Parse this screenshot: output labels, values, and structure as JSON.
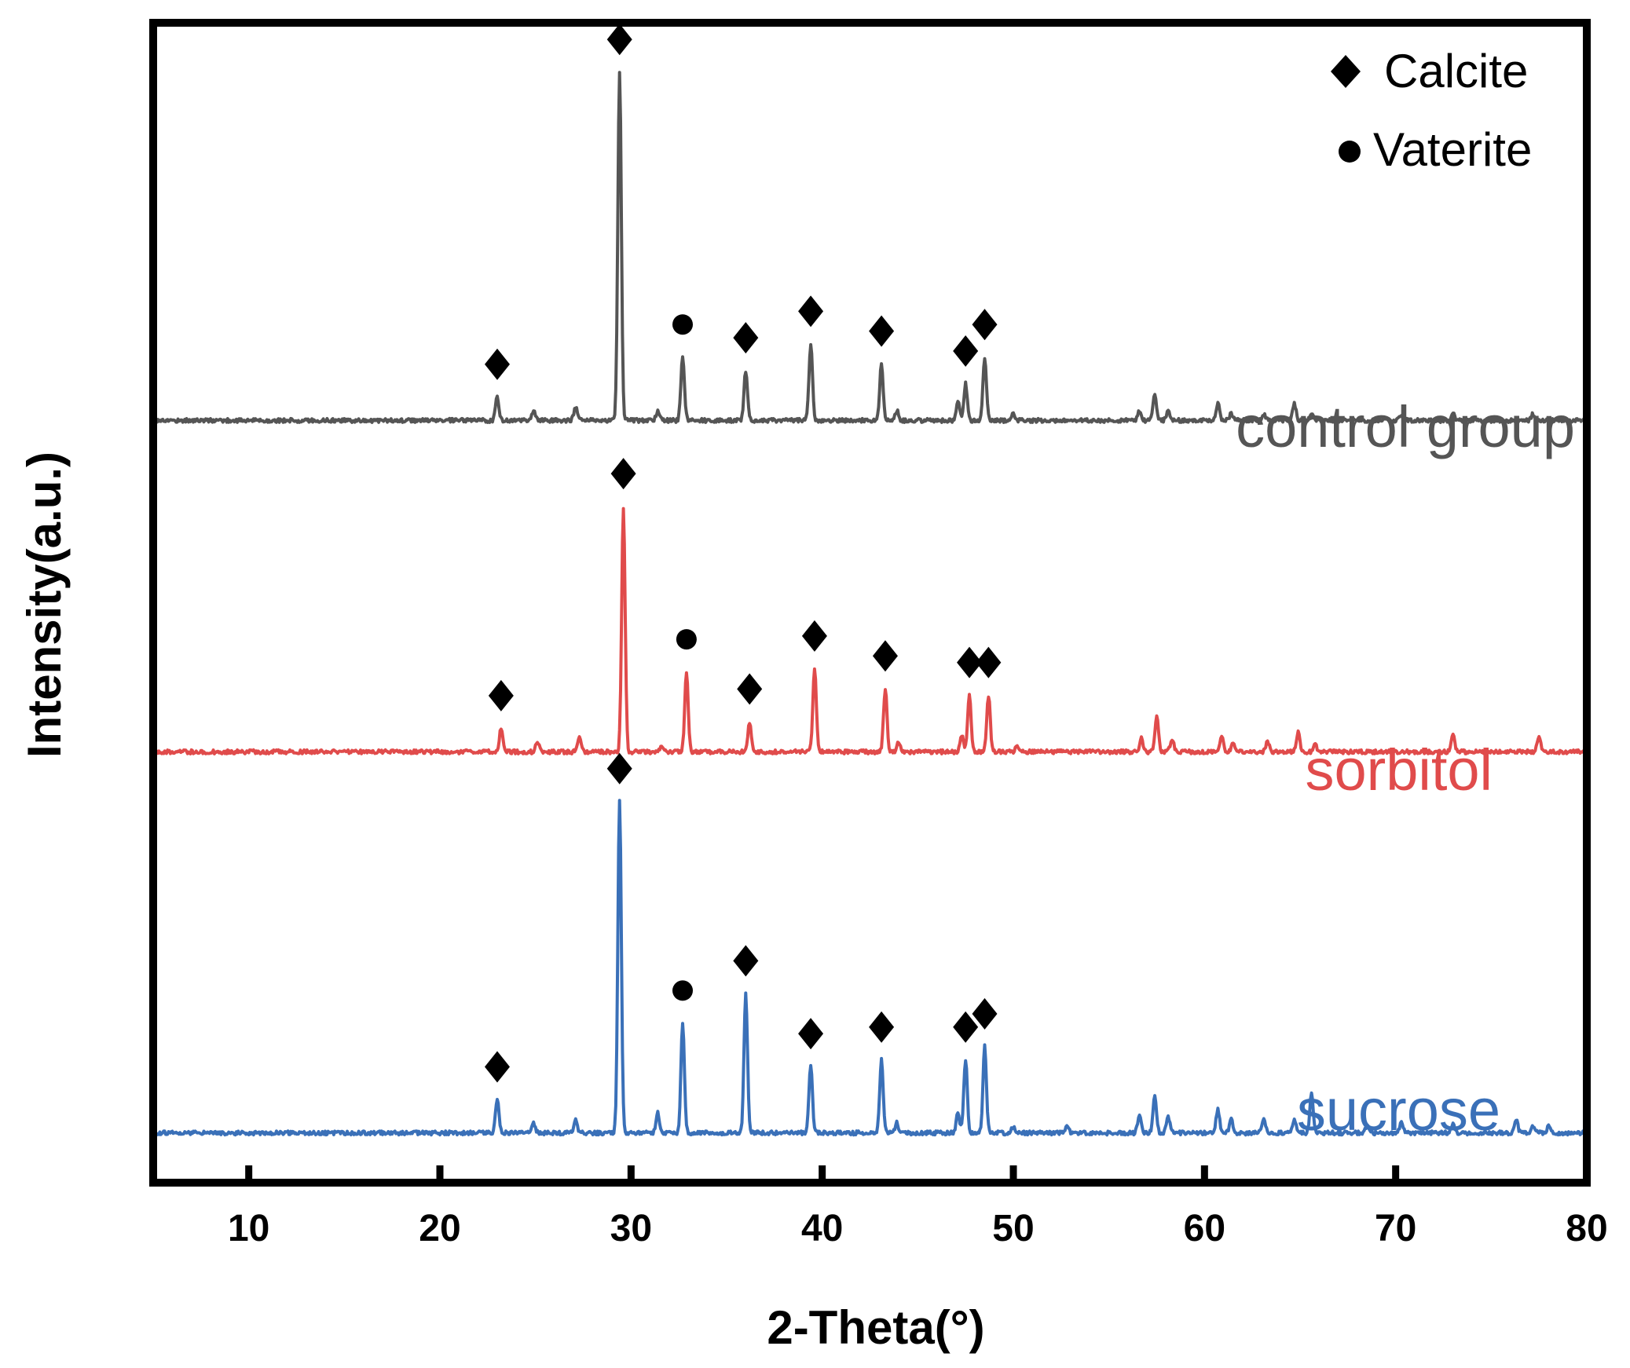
{
  "chart_data": {
    "type": "line",
    "title": "",
    "xlabel": "2-Theta(°)",
    "ylabel": "Intensity(a.u.)",
    "xlim": [
      5,
      80
    ],
    "xticks": [
      10,
      20,
      30,
      40,
      50,
      60,
      70,
      80
    ],
    "ylim": [
      0,
      3.5
    ],
    "yticks_shown": false,
    "legend": {
      "position": "top-right",
      "entries": [
        {
          "marker": "diamond",
          "label": "Calcite"
        },
        {
          "marker": "circle",
          "label": "Vaterite"
        }
      ]
    },
    "series": [
      {
        "name": "control group",
        "color": "#555555",
        "baseline": 2.3,
        "peaks": [
          {
            "x": 23.0,
            "h": 0.07
          },
          {
            "x": 24.9,
            "h": 0.03
          },
          {
            "x": 27.1,
            "h": 0.04
          },
          {
            "x": 29.4,
            "h": 1.05
          },
          {
            "x": 31.4,
            "h": 0.03
          },
          {
            "x": 32.7,
            "h": 0.19
          },
          {
            "x": 36.0,
            "h": 0.15
          },
          {
            "x": 39.4,
            "h": 0.23
          },
          {
            "x": 43.1,
            "h": 0.17
          },
          {
            "x": 43.9,
            "h": 0.03
          },
          {
            "x": 47.1,
            "h": 0.06
          },
          {
            "x": 47.5,
            "h": 0.11
          },
          {
            "x": 48.5,
            "h": 0.19
          },
          {
            "x": 50.0,
            "h": 0.02
          },
          {
            "x": 56.6,
            "h": 0.03
          },
          {
            "x": 57.4,
            "h": 0.08
          },
          {
            "x": 58.1,
            "h": 0.03
          },
          {
            "x": 60.7,
            "h": 0.05
          },
          {
            "x": 61.4,
            "h": 0.02
          },
          {
            "x": 63.1,
            "h": 0.02
          },
          {
            "x": 64.7,
            "h": 0.05
          },
          {
            "x": 65.6,
            "h": 0.02
          },
          {
            "x": 70.3,
            "h": 0.02
          },
          {
            "x": 73.0,
            "h": 0.02
          },
          {
            "x": 77.2,
            "h": 0.02
          }
        ],
        "markers": [
          {
            "x": 23.0,
            "type": "calcite"
          },
          {
            "x": 29.4,
            "type": "calcite"
          },
          {
            "x": 32.7,
            "type": "vaterite"
          },
          {
            "x": 36.0,
            "type": "calcite"
          },
          {
            "x": 39.4,
            "type": "calcite"
          },
          {
            "x": 43.1,
            "type": "calcite"
          },
          {
            "x": 47.5,
            "type": "calcite"
          },
          {
            "x": 48.5,
            "type": "calcite"
          }
        ]
      },
      {
        "name": "sorbitol",
        "color": "#e04b4b",
        "baseline": 1.3,
        "peaks": [
          {
            "x": 23.2,
            "h": 0.07
          },
          {
            "x": 25.1,
            "h": 0.03
          },
          {
            "x": 27.3,
            "h": 0.04
          },
          {
            "x": 29.6,
            "h": 0.74
          },
          {
            "x": 31.6,
            "h": 0.02
          },
          {
            "x": 32.9,
            "h": 0.24
          },
          {
            "x": 36.2,
            "h": 0.09
          },
          {
            "x": 39.6,
            "h": 0.25
          },
          {
            "x": 43.3,
            "h": 0.19
          },
          {
            "x": 44.0,
            "h": 0.03
          },
          {
            "x": 47.3,
            "h": 0.05
          },
          {
            "x": 47.7,
            "h": 0.17
          },
          {
            "x": 48.7,
            "h": 0.17
          },
          {
            "x": 50.2,
            "h": 0.02
          },
          {
            "x": 56.7,
            "h": 0.04
          },
          {
            "x": 57.5,
            "h": 0.11
          },
          {
            "x": 58.3,
            "h": 0.04
          },
          {
            "x": 60.9,
            "h": 0.05
          },
          {
            "x": 61.5,
            "h": 0.03
          },
          {
            "x": 63.3,
            "h": 0.03
          },
          {
            "x": 64.9,
            "h": 0.06
          },
          {
            "x": 65.8,
            "h": 0.02
          },
          {
            "x": 73.0,
            "h": 0.05
          },
          {
            "x": 77.5,
            "h": 0.05
          }
        ],
        "markers": [
          {
            "x": 23.2,
            "type": "calcite"
          },
          {
            "x": 29.6,
            "type": "calcite"
          },
          {
            "x": 32.9,
            "type": "vaterite"
          },
          {
            "x": 36.2,
            "type": "calcite"
          },
          {
            "x": 39.6,
            "type": "calcite"
          },
          {
            "x": 43.3,
            "type": "calcite"
          },
          {
            "x": 47.7,
            "type": "calcite"
          },
          {
            "x": 48.7,
            "type": "calcite"
          }
        ]
      },
      {
        "name": "sucrose",
        "color": "#3a70b8",
        "baseline": 0.15,
        "peaks": [
          {
            "x": 23.0,
            "h": 0.1
          },
          {
            "x": 24.9,
            "h": 0.03
          },
          {
            "x": 27.1,
            "h": 0.04
          },
          {
            "x": 29.4,
            "h": 1.0
          },
          {
            "x": 31.4,
            "h": 0.06
          },
          {
            "x": 32.7,
            "h": 0.33
          },
          {
            "x": 36.0,
            "h": 0.42
          },
          {
            "x": 39.4,
            "h": 0.2
          },
          {
            "x": 43.1,
            "h": 0.22
          },
          {
            "x": 43.9,
            "h": 0.03
          },
          {
            "x": 47.1,
            "h": 0.06
          },
          {
            "x": 47.5,
            "h": 0.22
          },
          {
            "x": 48.5,
            "h": 0.26
          },
          {
            "x": 50.0,
            "h": 0.02
          },
          {
            "x": 52.8,
            "h": 0.02
          },
          {
            "x": 56.6,
            "h": 0.06
          },
          {
            "x": 57.4,
            "h": 0.11
          },
          {
            "x": 58.1,
            "h": 0.05
          },
          {
            "x": 60.7,
            "h": 0.07
          },
          {
            "x": 61.4,
            "h": 0.04
          },
          {
            "x": 63.1,
            "h": 0.04
          },
          {
            "x": 64.7,
            "h": 0.04
          },
          {
            "x": 65.6,
            "h": 0.12
          },
          {
            "x": 68.5,
            "h": 0.02
          },
          {
            "x": 70.3,
            "h": 0.03
          },
          {
            "x": 73.0,
            "h": 0.03
          },
          {
            "x": 76.3,
            "h": 0.04
          },
          {
            "x": 77.2,
            "h": 0.02
          },
          {
            "x": 78.0,
            "h": 0.02
          }
        ],
        "markers": [
          {
            "x": 23.0,
            "type": "calcite"
          },
          {
            "x": 29.4,
            "type": "calcite"
          },
          {
            "x": 32.7,
            "type": "vaterite"
          },
          {
            "x": 36.0,
            "type": "calcite"
          },
          {
            "x": 39.4,
            "type": "calcite"
          },
          {
            "x": 43.1,
            "type": "calcite"
          },
          {
            "x": 47.5,
            "type": "calcite"
          },
          {
            "x": 48.5,
            "type": "calcite"
          }
        ]
      }
    ]
  }
}
